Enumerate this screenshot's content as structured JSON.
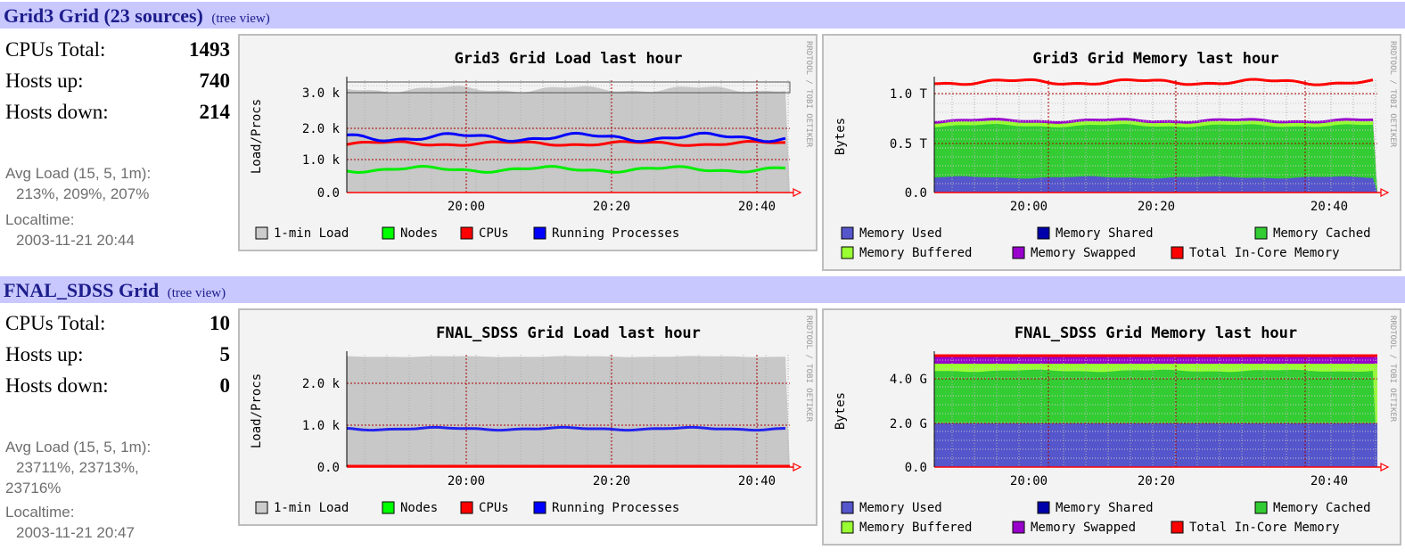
{
  "sections": [
    {
      "title": "Grid3 Grid (23 sources)",
      "tree_link": "(tree view)",
      "stats": [
        {
          "label": "CPUs Total:",
          "value": "1493"
        },
        {
          "label": "Hosts up:",
          "value": "740"
        },
        {
          "label": "Hosts down:",
          "value": "214"
        }
      ],
      "avg_load_label": "Avg Load (15, 5, 1m):",
      "avg_load_lines": [
        "213%, 209%, 207%"
      ],
      "localtime_label": "Localtime:",
      "localtime_value": "2003-11-21 20:44",
      "load_graph": {
        "title": "Grid3 Grid Load last hour",
        "ylabel": "Load/Procs",
        "yticks": [
          "3.0 k",
          "2.0 k",
          "1.0 k",
          "0.0"
        ],
        "xticks": [
          "20:00",
          "20:20",
          "20:40"
        ],
        "legend": [
          {
            "label": "1-min Load",
            "color": "#cccccc"
          },
          {
            "label": "Nodes",
            "color": "#00ff00"
          },
          {
            "label": "CPUs",
            "color": "#ff0000"
          },
          {
            "label": "Running Processes",
            "color": "#0000ff"
          }
        ],
        "watermark": "RRDTOOL / TOBI OETIKER"
      },
      "mem_graph": {
        "title": "Grid3 Grid Memory last hour",
        "ylabel": "Bytes",
        "yticks": [
          "1.0 T",
          "0.5 T",
          "0.0"
        ],
        "xticks": [
          "20:00",
          "20:20",
          "20:40"
        ],
        "legend": [
          {
            "label": "Memory Used",
            "color": "#5555cc"
          },
          {
            "label": "Memory Shared",
            "color": "#0000aa"
          },
          {
            "label": "Memory Cached",
            "color": "#33cc33"
          },
          {
            "label": "Memory Buffered",
            "color": "#99ff33"
          },
          {
            "label": "Memory Swapped",
            "color": "#9900cc"
          },
          {
            "label": "Total In-Core Memory",
            "color": "#ff0000"
          }
        ],
        "watermark": "RRDTOOL / TOBI OETIKER"
      }
    },
    {
      "title": "FNAL_SDSS Grid",
      "tree_link": "(tree view)",
      "stats": [
        {
          "label": "CPUs Total:",
          "value": "10"
        },
        {
          "label": "Hosts up:",
          "value": "5"
        },
        {
          "label": "Hosts down:",
          "value": "0"
        }
      ],
      "avg_load_label": "Avg Load (15, 5, 1m):",
      "avg_load_lines": [
        "23711%, 23713%,",
        "23716%"
      ],
      "localtime_label": "Localtime:",
      "localtime_value": "2003-11-21 20:47",
      "load_graph": {
        "title": "FNAL_SDSS Grid Load last hour",
        "ylabel": "Load/Procs",
        "yticks": [
          "2.0 k",
          "1.0 k",
          "0.0"
        ],
        "xticks": [
          "20:00",
          "20:20",
          "20:40"
        ],
        "legend": [
          {
            "label": "1-min Load",
            "color": "#cccccc"
          },
          {
            "label": "Nodes",
            "color": "#00ff00"
          },
          {
            "label": "CPUs",
            "color": "#ff0000"
          },
          {
            "label": "Running Processes",
            "color": "#0000ff"
          }
        ],
        "watermark": "RRDTOOL / TOBI OETIKER"
      },
      "mem_graph": {
        "title": "FNAL_SDSS Grid Memory last hour",
        "ylabel": "Bytes",
        "yticks": [
          "4.0 G",
          "2.0 G",
          "0.0"
        ],
        "xticks": [
          "20:00",
          "20:20",
          "20:40"
        ],
        "legend": [
          {
            "label": "Memory Used",
            "color": "#5555cc"
          },
          {
            "label": "Memory Shared",
            "color": "#0000aa"
          },
          {
            "label": "Memory Cached",
            "color": "#33cc33"
          },
          {
            "label": "Memory Buffered",
            "color": "#99ff33"
          },
          {
            "label": "Memory Swapped",
            "color": "#9900cc"
          },
          {
            "label": "Total In-Core Memory",
            "color": "#ff0000"
          }
        ],
        "watermark": "RRDTOOL / TOBI OETIKER"
      }
    }
  ]
}
